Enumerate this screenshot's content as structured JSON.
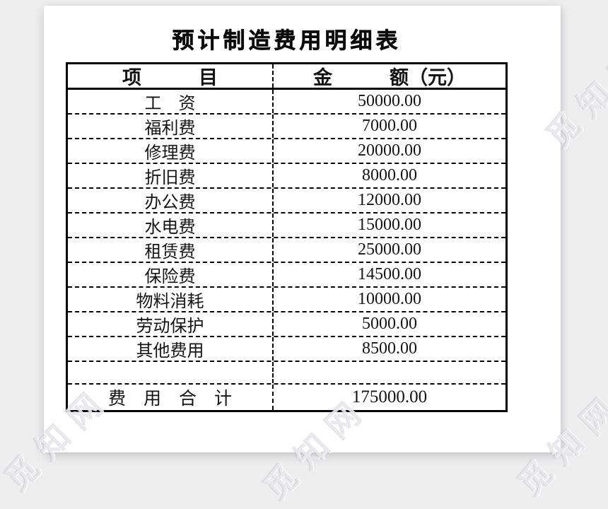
{
  "document": {
    "title": "预计制造费用明细表",
    "watermark": "觅知网",
    "table": {
      "header": {
        "item": "项　　　目",
        "amount": "金　　　额（元）"
      },
      "rows": [
        {
          "item": "工　资",
          "amount": "50000.00"
        },
        {
          "item": "福利费",
          "amount": "7000.00"
        },
        {
          "item": "修理费",
          "amount": "20000.00"
        },
        {
          "item": "折旧费",
          "amount": "8000.00"
        },
        {
          "item": "办公费",
          "amount": "12000.00"
        },
        {
          "item": "水电费",
          "amount": "15000.00"
        },
        {
          "item": "租赁费",
          "amount": "25000.00"
        },
        {
          "item": "保险费",
          "amount": "14500.00"
        },
        {
          "item": "物料消耗",
          "amount": "10000.00"
        },
        {
          "item": "劳动保护",
          "amount": "5000.00"
        },
        {
          "item": "其他费用",
          "amount": "8500.00"
        },
        {
          "item": "",
          "amount": "",
          "empty": true
        },
        {
          "item": "费　用　合　计",
          "amount": "175000.00",
          "total": true
        }
      ]
    },
    "colors": {
      "canvas_bg": "#eeeeef",
      "page_bg": "#ffffff",
      "table_border": "#000000"
    }
  }
}
